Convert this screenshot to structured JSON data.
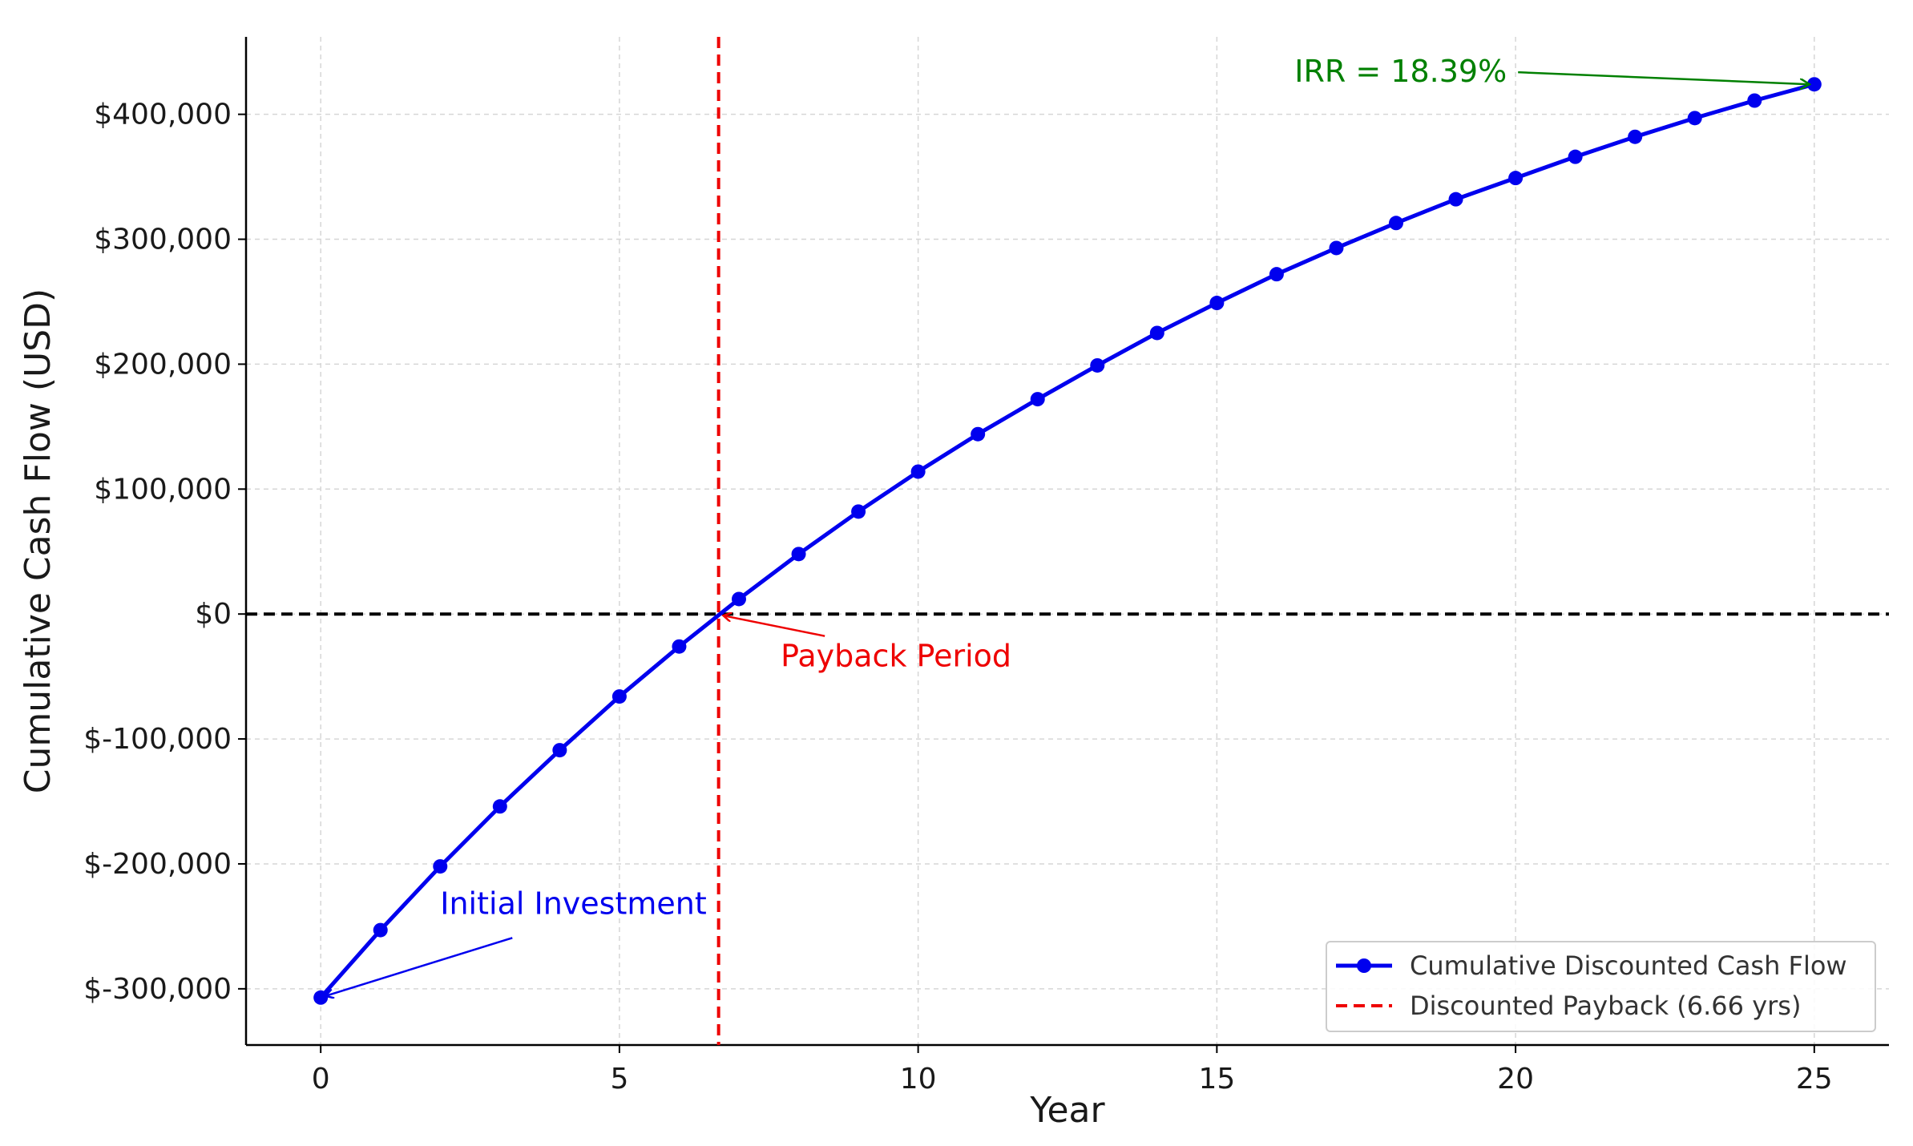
{
  "chart_data": {
    "type": "line",
    "title": "",
    "xlabel": "Year",
    "ylabel": "Cumulative Cash Flow (USD)",
    "xlim": [
      -1.25,
      26.25
    ],
    "ylim": [
      -345000,
      462000
    ],
    "x_ticks": [
      0,
      5,
      10,
      15,
      20,
      25
    ],
    "x_tick_labels": [
      "0",
      "5",
      "10",
      "15",
      "20",
      "25"
    ],
    "y_ticks": [
      -300000,
      -200000,
      -100000,
      0,
      100000,
      200000,
      300000,
      400000
    ],
    "y_tick_labels": [
      "$-300,000",
      "$-200,000",
      "$-100,000",
      "$0",
      "$100,000",
      "$200,000",
      "$300,000",
      "$400,000"
    ],
    "grid": true,
    "legend_position": "bottom-right",
    "series": [
      {
        "name": "Cumulative Discounted Cash Flow",
        "color": "#0000ee",
        "x": [
          0,
          1,
          2,
          3,
          4,
          5,
          6,
          7,
          8,
          9,
          10,
          11,
          12,
          13,
          14,
          15,
          16,
          17,
          18,
          19,
          20,
          21,
          22,
          23,
          24,
          25
        ],
        "values": [
          -307000,
          -253000,
          -202000,
          -154000,
          -109000,
          -66000,
          -26000,
          12000,
          48000,
          82000,
          114000,
          144000,
          172000,
          199000,
          225000,
          249000,
          272000,
          293000,
          313000,
          332000,
          349000,
          366000,
          382000,
          397000,
          411000,
          424000
        ]
      }
    ],
    "reference_lines": [
      {
        "name": "Discounted Payback (6.66 yrs)",
        "orientation": "vertical",
        "x": 6.66,
        "color": "#ee0000",
        "style": "dashed"
      },
      {
        "orientation": "horizontal",
        "y": 0,
        "color": "#000000",
        "style": "dashed"
      }
    ],
    "annotations": [
      {
        "text": "Initial Investment",
        "color": "#0000ee",
        "point": [
          0,
          -307000
        ],
        "text_at": [
          2,
          -240000
        ]
      },
      {
        "text": "Payback Period",
        "color": "#ee0000",
        "point": [
          6.66,
          0
        ],
        "text_at": [
          7.7,
          -42000
        ]
      },
      {
        "text": "IRR = 18.39%",
        "color": "#008000",
        "point": [
          25,
          424000
        ],
        "text_at": [
          16.3,
          426000
        ]
      }
    ]
  }
}
